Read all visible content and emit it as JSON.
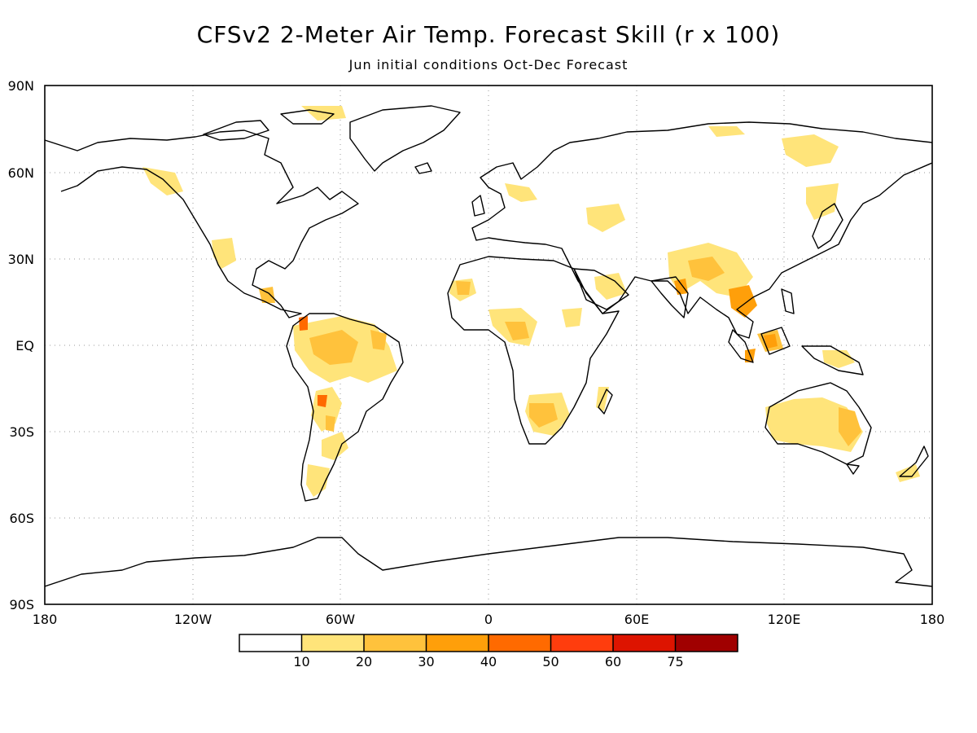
{
  "title": "CFSv2 2-Meter Air Temp. Forecast Skill (r x 100)",
  "subtitle": "Jun initial conditions  Oct-Dec Forecast",
  "map": {
    "projection": "cylindrical equidistant",
    "lon_range": [
      -180,
      180
    ],
    "lat_range": [
      -90,
      90
    ],
    "gridlines": "dotted",
    "lat_labels": [
      "90N",
      "60N",
      "30N",
      "EQ",
      "30S",
      "60S",
      "90S"
    ],
    "lon_labels": [
      "180",
      "120W",
      "60W",
      "0",
      "60E",
      "120E",
      "180"
    ]
  },
  "colorbar": {
    "labels": [
      "10",
      "20",
      "30",
      "40",
      "50",
      "60",
      "75"
    ],
    "colors": [
      "#ffffff",
      "#ffe47a",
      "#ffc23c",
      "#ff9f0a",
      "#ff6a00",
      "#ff3d0d",
      "#dd1400",
      "#a00000"
    ]
  }
}
